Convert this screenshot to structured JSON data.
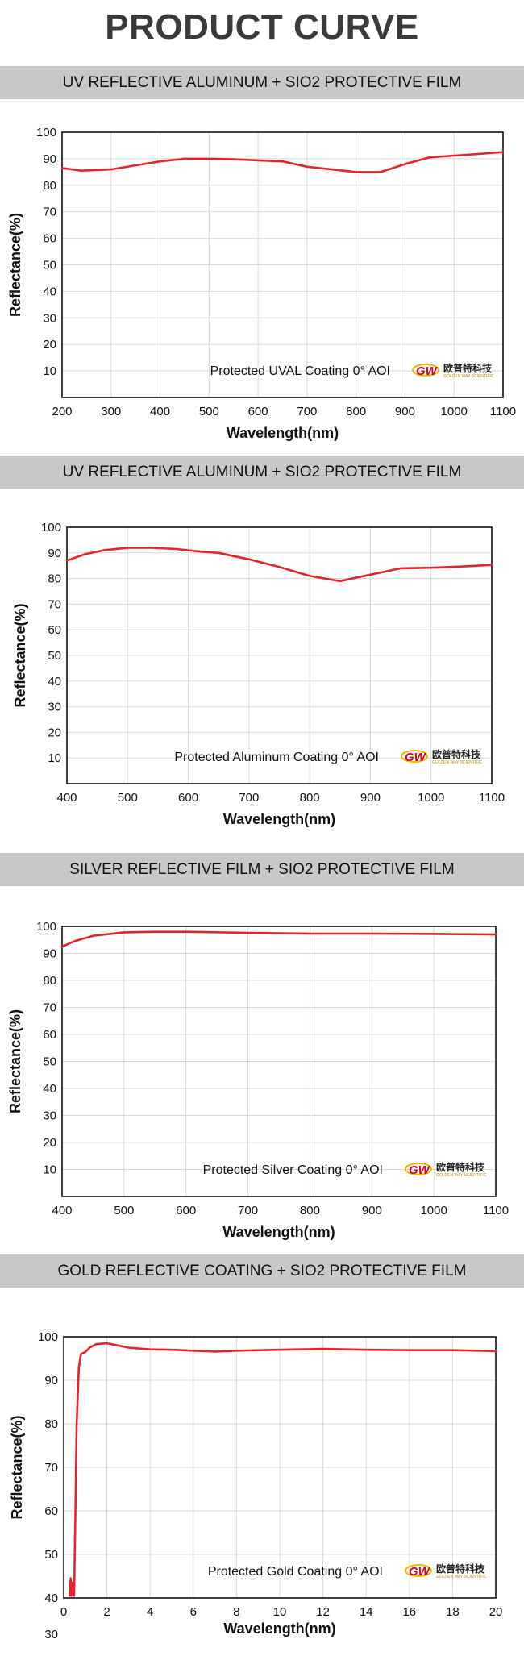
{
  "page_title": "PRODUCT CURVE",
  "sections": [
    {
      "heading": "UV REFLECTIVE ALUMINUM + SIO2 PROTECTIVE FILM"
    },
    {
      "heading": "UV REFLECTIVE ALUMINUM + SIO2 PROTECTIVE FILM"
    },
    {
      "heading": "SILVER REFLECTIVE FILM + SIO2 PROTECTIVE FILM"
    },
    {
      "heading": "GOLD REFLECTIVE COATING + SIO2 PROTECTIVE FILM"
    }
  ],
  "logo": {
    "mark": "GW",
    "cn_text": "欧普特科技",
    "en_text": "GOLDEN WAY SCIENTIFIC",
    "mark_color": "#d9001b",
    "accent_color": "#f5b800"
  },
  "line_color": "#e8232a",
  "chart_data": [
    {
      "type": "line",
      "xlabel": "Wavelength(nm)",
      "ylabel": "Reflectance(%)",
      "annotation": "Protected UVAL Coating  0°  AOI",
      "xlim": [
        200,
        1100
      ],
      "ylim": [
        0,
        100
      ],
      "xticks": [
        200,
        300,
        400,
        500,
        600,
        700,
        800,
        900,
        1000,
        1100
      ],
      "yticks": [
        10,
        20,
        30,
        40,
        50,
        60,
        70,
        80,
        90,
        100
      ],
      "grid": true,
      "series": [
        {
          "x": [
            200,
            240,
            300,
            350,
            400,
            450,
            500,
            550,
            600,
            650,
            700,
            750,
            800,
            850,
            900,
            950,
            1000,
            1050,
            1100
          ],
          "y": [
            86.5,
            85.5,
            86,
            87.5,
            89,
            90,
            90,
            89.8,
            89.4,
            89,
            87,
            86,
            85,
            85,
            88,
            90.5,
            91.2,
            91.8,
            92.5
          ]
        }
      ]
    },
    {
      "type": "line",
      "xlabel": "Wavelength(nm)",
      "ylabel": "Reflectance(%)",
      "annotation": "Protected Aluminum Coating  0°  AOI",
      "xlim": [
        400,
        1100
      ],
      "ylim": [
        0,
        100
      ],
      "xticks": [
        400,
        500,
        600,
        700,
        800,
        900,
        1000,
        1100
      ],
      "yticks": [
        10,
        20,
        30,
        40,
        50,
        60,
        70,
        80,
        90,
        100
      ],
      "grid": true,
      "series": [
        {
          "x": [
            400,
            430,
            460,
            500,
            540,
            580,
            620,
            650,
            700,
            750,
            800,
            850,
            900,
            950,
            1000,
            1050,
            1100
          ],
          "y": [
            87,
            89.5,
            91,
            92,
            92,
            91.5,
            90.5,
            90,
            87.5,
            84.5,
            81,
            79,
            81.5,
            84,
            84.2,
            84.7,
            85.3
          ]
        }
      ]
    },
    {
      "type": "line",
      "xlabel": "Wavelength(nm)",
      "ylabel": "Reflectance(%)",
      "annotation": "Protected Silver Coating  0°  AOI",
      "xlim": [
        400,
        1100
      ],
      "ylim": [
        0,
        100
      ],
      "xticks": [
        400,
        500,
        600,
        700,
        800,
        900,
        1000,
        1100
      ],
      "yticks": [
        10,
        20,
        30,
        40,
        50,
        60,
        70,
        80,
        90,
        100
      ],
      "grid": true,
      "series": [
        {
          "x": [
            400,
            420,
            450,
            500,
            550,
            600,
            700,
            800,
            900,
            1000,
            1100
          ],
          "y": [
            92.5,
            94.5,
            96.5,
            97.8,
            98,
            98,
            97.6,
            97.3,
            97.3,
            97.2,
            97
          ]
        }
      ]
    },
    {
      "type": "line",
      "xlabel": "Wavelength(nm)",
      "ylabel": "Reflectance(%)",
      "annotation": "Protected Gold Coating  0°  AOI",
      "xlim": [
        0,
        20
      ],
      "ylim": [
        40,
        100
      ],
      "xticks": [
        0,
        2,
        4,
        6,
        8,
        10,
        12,
        14,
        16,
        18,
        20
      ],
      "yticks": [
        40,
        50,
        60,
        70,
        80,
        90,
        100
      ],
      "extra_ytick_below": "30",
      "grid": true,
      "series": [
        {
          "x": [
            0.28,
            0.32,
            0.36,
            0.4,
            0.44,
            0.48,
            0.52,
            0.6,
            0.7,
            0.8,
            1,
            1.2,
            1.5,
            2,
            2.5,
            3,
            4,
            5,
            6,
            7,
            8,
            10,
            12,
            14,
            16,
            18,
            20
          ],
          "y": [
            40.5,
            44.5,
            40.5,
            43.5,
            41,
            40.5,
            52,
            80,
            93,
            96,
            96.5,
            97.5,
            98.3,
            98.5,
            98,
            97.5,
            97.1,
            97,
            96.8,
            96.6,
            96.8,
            97,
            97.2,
            97,
            96.9,
            96.9,
            96.7
          ]
        }
      ]
    }
  ]
}
